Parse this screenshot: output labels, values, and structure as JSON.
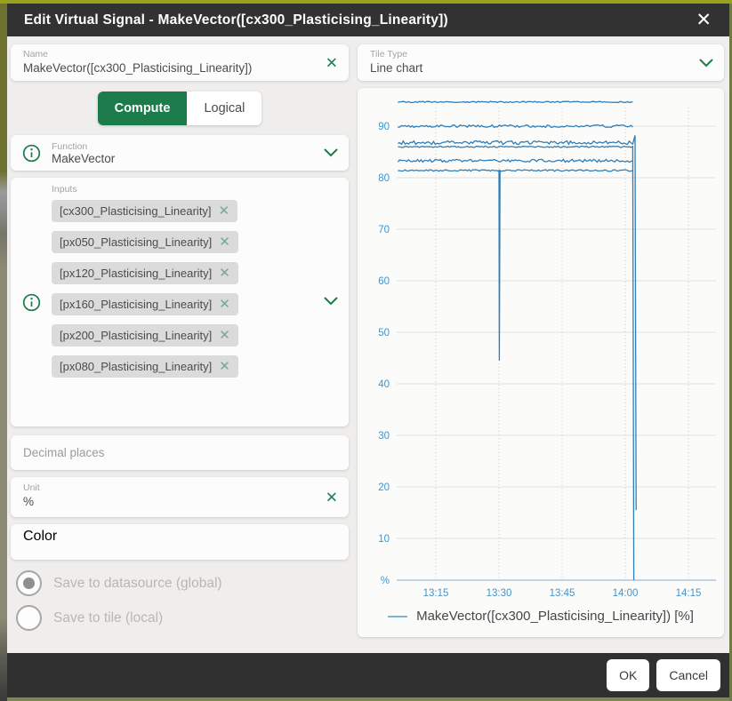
{
  "dialog": {
    "title": "Edit Virtual Signal - MakeVector([cx300_Plasticising_Linearity])",
    "close_icon": "✕"
  },
  "left": {
    "name_field": {
      "label": "Name",
      "value": "MakeVector([cx300_Plasticising_Linearity])",
      "clear_icon": "✕"
    },
    "mode_toggle": {
      "options": [
        {
          "label": "Compute",
          "selected": true
        },
        {
          "label": "Logical",
          "selected": false
        }
      ]
    },
    "function_field": {
      "label": "Function",
      "value": "MakeVector"
    },
    "inputs": {
      "label": "Inputs",
      "remove_icon": "✕",
      "chips": [
        "[cx300_Plasticising_Linearity]",
        "[px050_Plasticising_Linearity]",
        "[px120_Plasticising_Linearity]",
        "[px160_Plasticising_Linearity]",
        "[px200_Plasticising_Linearity]",
        "[px080_Plasticising_Linearity]"
      ]
    },
    "decimal_field": {
      "placeholder": "Decimal places"
    },
    "unit_field": {
      "label": "Unit",
      "value": "%",
      "clear_icon": "✕"
    },
    "color_field": {
      "label": "Color"
    },
    "save_options": [
      {
        "label": "Save to datasource (global)",
        "selected": true
      },
      {
        "label": "Save to tile (local)",
        "selected": false
      }
    ]
  },
  "right": {
    "tile_type_field": {
      "label": "Tile Type",
      "value": "Line chart"
    }
  },
  "footer": {
    "ok_label": "OK",
    "cancel_label": "Cancel"
  },
  "colors": {
    "accent_green": "#1b7b4b",
    "line_blue": "#2f7eb8",
    "tick_blue": "#4493c8",
    "grid_gray": "#e2e2e2",
    "grid_dotted": "#c8c8c8",
    "axis_blue": "#a9c7e2",
    "header_dark": "#323232"
  },
  "chart_data": {
    "type": "line",
    "title": "",
    "xlabel": "",
    "ylabel": "%",
    "x_ticks": [
      "13:15",
      "13:30",
      "13:45",
      "14:00",
      "14:15"
    ],
    "y_labels": [
      {
        "text": "90",
        "value": 90
      },
      {
        "text": "80",
        "value": 80
      },
      {
        "text": "70",
        "value": 70
      },
      {
        "text": "60",
        "value": 60
      },
      {
        "text": "50",
        "value": 50
      },
      {
        "text": "40",
        "value": 40
      },
      {
        "text": "30",
        "value": 30
      },
      {
        "text": "20",
        "value": 20
      },
      {
        "text": "10",
        "value": 10
      },
      {
        "text": "%",
        "value": 0
      }
    ],
    "ylim": [
      0,
      97
    ],
    "x_axis_range": [
      "13:04",
      "14:22"
    ],
    "data_start": "13:06",
    "data_end": "14:02",
    "line_color": "#2f7eb8",
    "legend": {
      "marker_color": "#7fb3d5",
      "label": "MakeVector([cx300_Plasticising_Linearity]) [%]"
    },
    "series": [
      {
        "name": "[cx300_Plasticising_Linearity]",
        "approx_value": 94.7,
        "noise": 0.12
      },
      {
        "name": "[px050_Plasticising_Linearity]",
        "approx_value": 90.0,
        "noise": 0.25
      },
      {
        "name": "[px120_Plasticising_Linearity]",
        "approx_value": 86.8,
        "noise": 0.35,
        "end_spike": 88.2,
        "end_drop_to": 15.5
      },
      {
        "name": "[px160_Plasticising_Linearity]",
        "approx_value": 86.0,
        "noise": 0.12,
        "end_drop_to": 1.5
      },
      {
        "name": "[px200_Plasticising_Linearity]",
        "approx_value": 83.3,
        "noise": 0.28
      },
      {
        "name": "[px080_Plasticising_Linearity]",
        "approx_value": 81.4,
        "noise": 0.16,
        "dip": {
          "time": "13:30",
          "value": 44.5
        }
      }
    ]
  }
}
